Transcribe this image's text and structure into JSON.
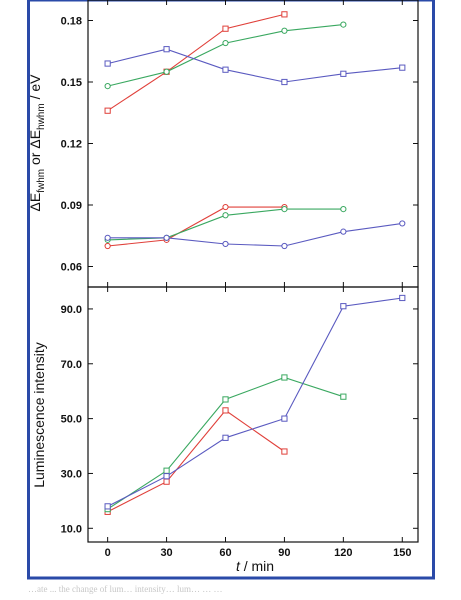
{
  "figure": {
    "border_color": "#2a4aa8",
    "caption_fragment": "…ate ... the change of lum… intensity…  lum…   … …"
  },
  "chart_data": [
    {
      "type": "line",
      "panel": "top",
      "ylabel_parts": [
        "ΔE",
        "fwhm",
        " or ΔE",
        "hwhm",
        " / eV"
      ],
      "xlabel": "",
      "ylim": [
        0.05,
        0.19
      ],
      "yticks": [
        0.06,
        0.09,
        0.12,
        0.15,
        0.18
      ],
      "ytick_labels": [
        "0.06",
        "0.09",
        "0.12",
        "0.15",
        "0.18"
      ],
      "x": [
        0,
        30,
        60,
        90,
        120,
        150
      ],
      "xlim": [
        -10,
        158
      ],
      "series": [
        {
          "color": "#e0403a",
          "marker": "square",
          "x": [
            0,
            30,
            60,
            90
          ],
          "values": [
            0.136,
            0.155,
            0.176,
            0.183
          ]
        },
        {
          "color": "#3aa860",
          "marker": "circle",
          "x": [
            0,
            30,
            60,
            90,
            120
          ],
          "values": [
            0.148,
            0.155,
            0.169,
            0.175,
            0.178
          ]
        },
        {
          "color": "#5a5ac0",
          "marker": "square",
          "x": [
            0,
            30,
            60,
            90,
            120,
            150
          ],
          "values": [
            0.159,
            0.166,
            0.156,
            0.15,
            0.154,
            0.157
          ]
        },
        {
          "color": "#e0403a",
          "marker": "circle",
          "x": [
            0,
            30,
            60,
            90
          ],
          "values": [
            0.07,
            0.073,
            0.089,
            0.089
          ]
        },
        {
          "color": "#3aa860",
          "marker": "circle",
          "x": [
            0,
            30,
            60,
            90,
            120
          ],
          "values": [
            0.073,
            0.074,
            0.085,
            0.088,
            0.088
          ]
        },
        {
          "color": "#5a5ac0",
          "marker": "circle",
          "x": [
            0,
            30,
            60,
            90,
            120,
            150
          ],
          "values": [
            0.074,
            0.074,
            0.071,
            0.07,
            0.077,
            0.081
          ]
        }
      ]
    },
    {
      "type": "line",
      "panel": "bottom",
      "ylabel": "Luminescence intensity",
      "xlabel": "t / min",
      "xlabel_italic": "t",
      "xlabel_rest": " / min",
      "ylim": [
        5,
        98
      ],
      "yticks": [
        10,
        30,
        50,
        70,
        90
      ],
      "ytick_labels": [
        "10.0",
        "30.0",
        "50.0",
        "70.0",
        "90.0"
      ],
      "xticks": [
        0,
        30,
        60,
        90,
        120,
        150
      ],
      "xtick_labels": [
        "0",
        "30",
        "60",
        "90",
        "120",
        "150"
      ],
      "xlim": [
        -10,
        158
      ],
      "series": [
        {
          "color": "#e0403a",
          "marker": "square",
          "x": [
            0,
            30,
            60,
            90
          ],
          "values": [
            16,
            27,
            53,
            38
          ]
        },
        {
          "color": "#3aa860",
          "marker": "square",
          "x": [
            0,
            30,
            60,
            90,
            120
          ],
          "values": [
            17,
            31,
            57,
            65,
            58
          ]
        },
        {
          "color": "#5a5ac0",
          "marker": "square",
          "x": [
            0,
            30,
            60,
            90,
            120,
            150
          ],
          "values": [
            18,
            29,
            43,
            50,
            91,
            94
          ]
        }
      ]
    }
  ]
}
